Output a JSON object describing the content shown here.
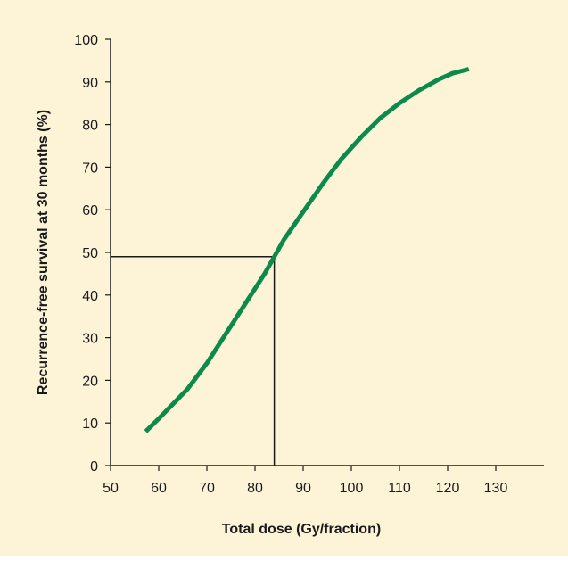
{
  "chart_data": {
    "type": "line",
    "title": "",
    "xlabel": "Total dose (Gy/fraction)",
    "ylabel": "Recurrence-free survival at 30 months (%)",
    "xlim": [
      50,
      140
    ],
    "ylim": [
      0,
      100
    ],
    "x_ticks": [
      50,
      60,
      70,
      80,
      90,
      100,
      110,
      120,
      130
    ],
    "y_ticks": [
      0,
      10,
      20,
      30,
      40,
      50,
      60,
      70,
      80,
      90,
      100
    ],
    "grid": false,
    "legend": "none",
    "series": [
      {
        "color": "#0b8a4a",
        "x": [
          57.3,
          60,
          63,
          66,
          70,
          74,
          78,
          82,
          84,
          86,
          90,
          94,
          98,
          102,
          106,
          110,
          114,
          118,
          121,
          124.4
        ],
        "y": [
          8,
          11,
          14.5,
          18,
          24,
          31,
          38,
          45,
          49,
          53,
          59.5,
          66,
          72,
          77,
          81.5,
          85,
          88,
          90.5,
          92,
          93
        ]
      }
    ],
    "reference_lines": {
      "x": 84,
      "y": 49,
      "color": "#1a1a1a"
    }
  }
}
